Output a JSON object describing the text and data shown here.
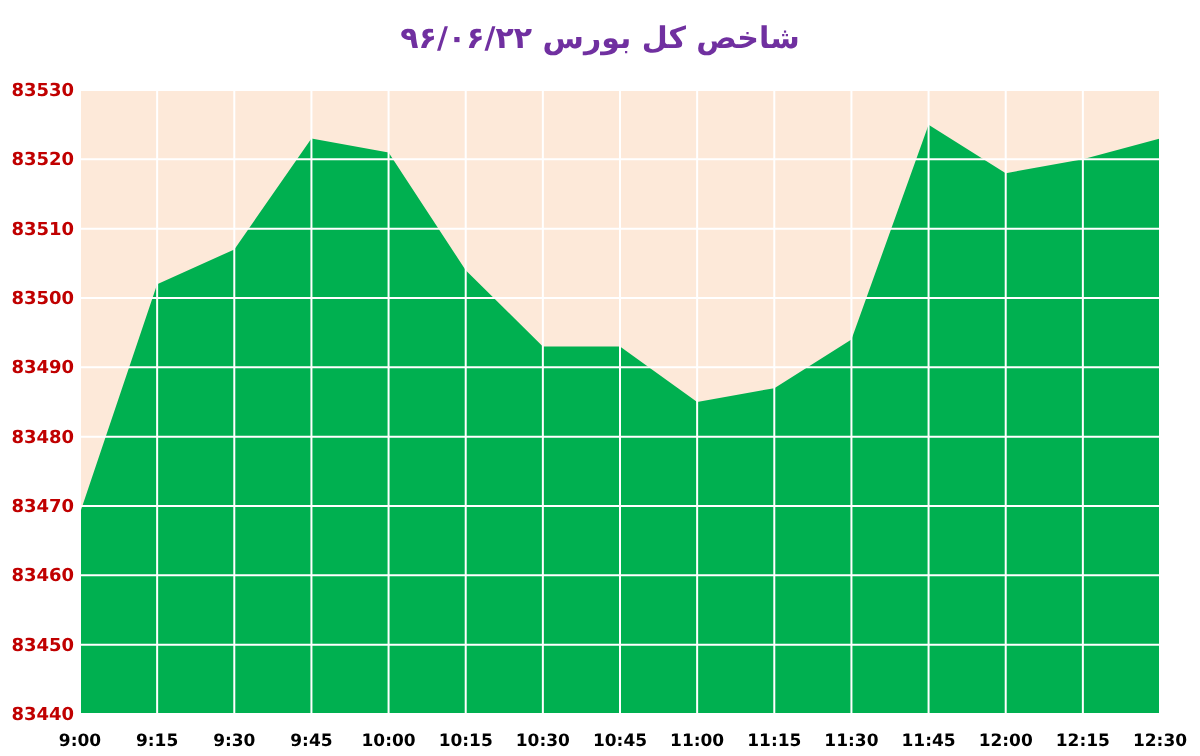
{
  "chart_data": {
    "type": "area",
    "title": "شاخص کل بورس ۹۶/۰۶/۲۲",
    "categories": [
      "9:00",
      "9:15",
      "9:30",
      "9:45",
      "10:00",
      "10:15",
      "10:30",
      "10:45",
      "11:00",
      "11:15",
      "11:30",
      "11:45",
      "12:00",
      "12:15",
      "12:30"
    ],
    "series": [
      {
        "color": "#00b050",
        "values": [
          83469,
          83502,
          83507,
          83523,
          83521,
          83504,
          83493,
          83493,
          83485,
          83487,
          83494,
          83525,
          83518,
          83520,
          83523
        ]
      }
    ],
    "ylim": [
      83440,
      83530
    ],
    "yticks": [
      83440,
      83450,
      83460,
      83470,
      83480,
      83490,
      83500,
      83510,
      83520,
      83530
    ],
    "bands": [
      {
        "axis": "y",
        "from": 83440,
        "to": 83530,
        "color": "#fde9d9"
      }
    ],
    "grid": true
  }
}
